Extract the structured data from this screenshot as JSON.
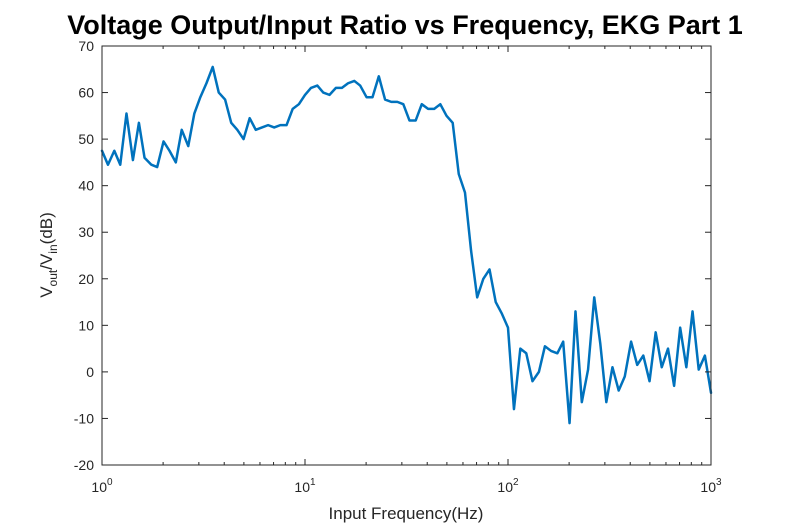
{
  "chart_data": {
    "type": "line",
    "title": "Voltage Output/Input Ratio vs Frequency, EKG Part 1",
    "xlabel": "Input Frequency(Hz)",
    "ylabel": {
      "prefix": "V",
      "sub1": "out",
      "mid": "/V",
      "sub2": "in",
      "suffix": "(dB)"
    },
    "x_scale": "log",
    "xlim": [
      1,
      1000
    ],
    "ylim": [
      -20,
      70
    ],
    "x_ticks": [
      {
        "value": 1,
        "base": "10",
        "exp": "0"
      },
      {
        "value": 10,
        "base": "10",
        "exp": "1"
      },
      {
        "value": 100,
        "base": "10",
        "exp": "2"
      },
      {
        "value": 1000,
        "base": "10",
        "exp": "3"
      }
    ],
    "y_ticks": [
      -20,
      -10,
      0,
      10,
      20,
      30,
      40,
      50,
      60,
      70
    ],
    "grid": false,
    "line_color": "#0072BD",
    "series": [
      {
        "x": [
          1.0,
          1.07,
          1.15,
          1.23,
          1.32,
          1.42,
          1.52,
          1.62,
          1.75,
          1.87,
          2.01,
          2.15,
          2.31,
          2.47,
          2.66,
          2.85,
          3.05,
          3.27,
          3.51,
          3.76,
          4.04,
          4.33,
          4.64,
          4.98,
          5.34,
          5.72,
          6.14,
          6.58,
          7.05,
          7.56,
          8.11,
          8.7,
          9.33,
          10.0,
          10.7,
          11.5,
          12.3,
          13.2,
          14.2,
          15.2,
          16.3,
          17.5,
          18.7,
          20.1,
          21.5,
          23.1,
          24.8,
          26.6,
          28.5,
          30.5,
          32.7,
          35.1,
          37.6,
          40.4,
          43.3,
          46.4,
          49.8,
          53.4,
          57.2,
          61.4,
          65.8,
          70.5,
          75.6,
          81.1,
          87.0,
          93.3,
          100.0,
          107.0,
          115.0,
          123.0,
          132.0,
          142.0,
          152.0,
          163.0,
          175.0,
          187.0,
          201.0,
          215.0,
          231.0,
          248.0,
          266.0,
          285.0,
          305.0,
          327.0,
          351.0,
          376.0,
          404.0,
          433.0,
          464.0,
          498.0,
          534.0,
          572.0,
          614.0,
          658.0,
          705.0,
          756.0,
          811.0,
          870.0,
          933.0,
          1000.0
        ],
        "y": [
          47.5,
          44.5,
          47.5,
          44.5,
          55.5,
          45.5,
          53.5,
          46.0,
          44.5,
          44.0,
          49.5,
          47.5,
          45.0,
          52.0,
          48.5,
          55.5,
          59.0,
          62.0,
          65.5,
          60.0,
          58.5,
          53.5,
          52.0,
          50.0,
          54.5,
          52.0,
          52.5,
          53.0,
          52.5,
          53.0,
          53.0,
          56.5,
          57.5,
          59.5,
          61.0,
          61.5,
          60.0,
          59.5,
          61.0,
          61.0,
          62.0,
          62.5,
          61.5,
          59.0,
          59.0,
          63.5,
          58.5,
          58.0,
          58.0,
          57.5,
          54.0,
          54.0,
          57.5,
          56.5,
          56.5,
          57.5,
          55.0,
          53.5,
          42.5,
          38.5,
          26.0,
          16.0,
          20.0,
          22.0,
          15.0,
          12.5,
          9.5,
          -8.0,
          5.0,
          4.0,
          -2.0,
          0.0,
          5.5,
          4.5,
          4.0,
          6.5,
          -11.0,
          13.0,
          -6.5,
          0.5,
          16.0,
          6.0,
          -6.5,
          1.0,
          -4.0,
          -1.0,
          6.5,
          1.5,
          3.5,
          -2.0,
          8.5,
          1.0,
          5.0,
          -3.0,
          9.5,
          1.0,
          13.0,
          0.5,
          3.5,
          -4.5
        ]
      }
    ]
  }
}
